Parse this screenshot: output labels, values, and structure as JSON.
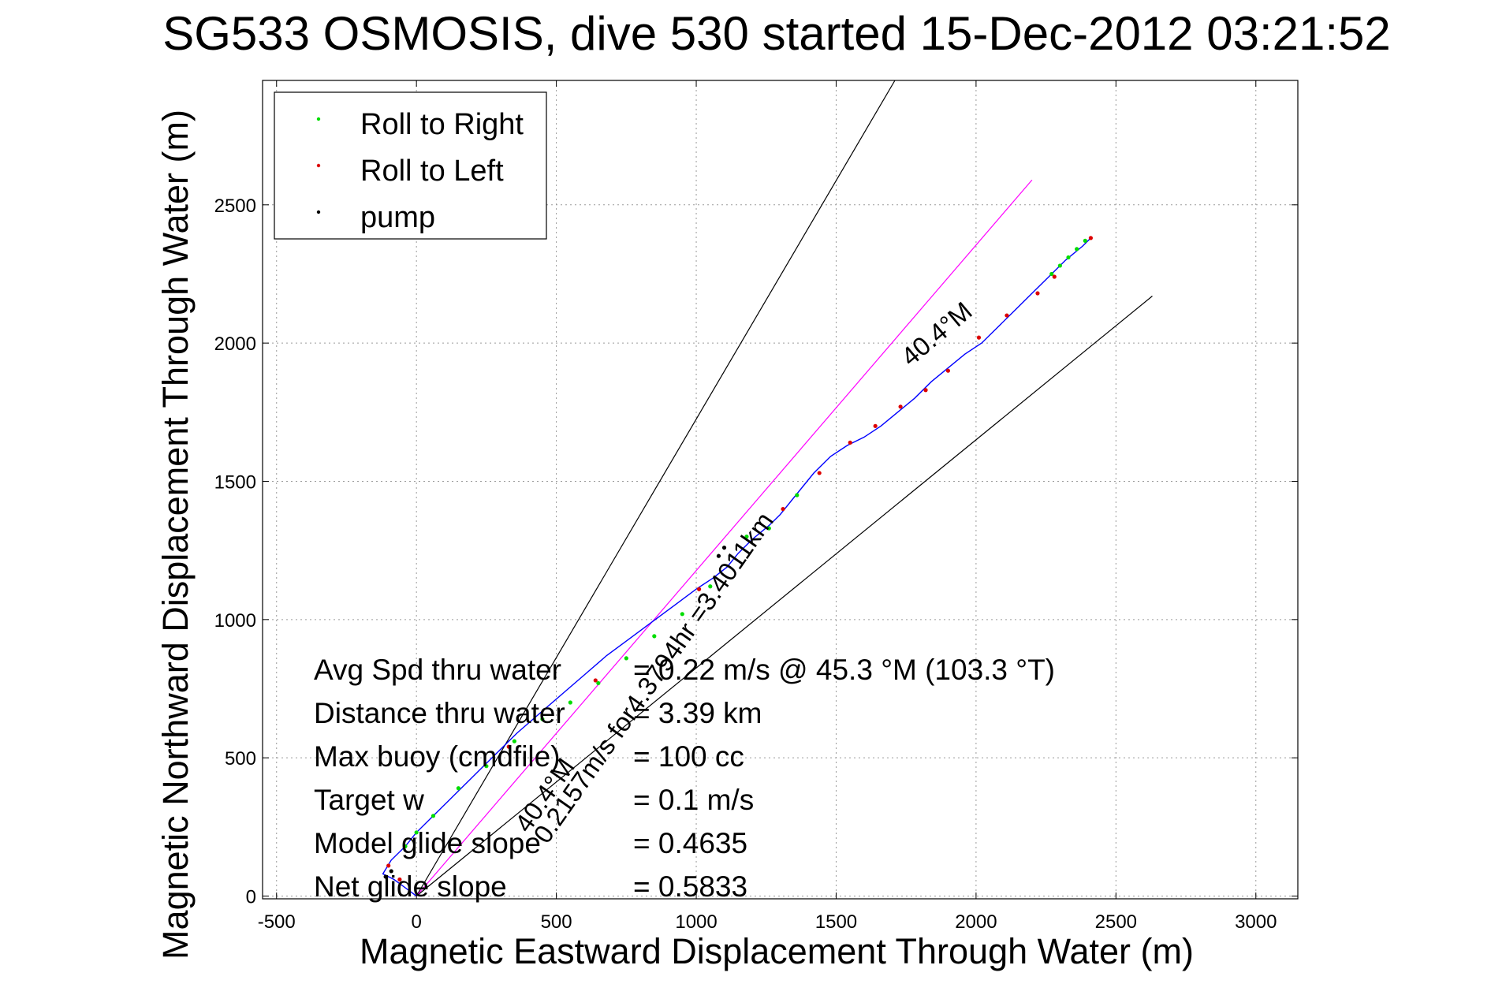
{
  "chart_data": {
    "type": "scatter",
    "title": "SG533 OSMOSIS, dive 530 started 15-Dec-2012 03:21:52",
    "xlabel": "Magnetic Eastward Displacement Through Water (m)",
    "ylabel": "Magnetic Northward Displacement Through Water (m)",
    "xlim": [
      -550,
      3150
    ],
    "ylim": [
      -10,
      2950
    ],
    "xticks": [
      -500,
      0,
      500,
      1000,
      1500,
      2000,
      2500,
      3000
    ],
    "yticks": [
      0,
      500,
      1000,
      1500,
      2000,
      2500
    ],
    "grid": true,
    "legend_placement": "top-left",
    "legend": [
      "Roll to Right",
      "Roll to Left",
      "pump"
    ],
    "colors": {
      "track": "#0000ff",
      "roll_right": "#00dd00",
      "roll_left": "#dd0000",
      "pump": "#000000",
      "heading_line": "#ff00ff",
      "cone_lines": "#000000"
    },
    "track": {
      "x": [
        0,
        -80,
        -120,
        -90,
        -40,
        0,
        60,
        130,
        200,
        280,
        360,
        440,
        520,
        600,
        680,
        760,
        840,
        920,
        1000,
        1060,
        1110,
        1150,
        1200,
        1260,
        1300,
        1340,
        1380,
        1420,
        1480,
        1540,
        1600,
        1660,
        1720,
        1780,
        1840,
        1900,
        1960,
        2020,
        2080,
        2140,
        2200,
        2260,
        2320,
        2380,
        2410
      ],
      "y": [
        0,
        60,
        80,
        130,
        180,
        230,
        290,
        360,
        430,
        510,
        590,
        660,
        730,
        800,
        870,
        930,
        990,
        1050,
        1110,
        1150,
        1190,
        1240,
        1290,
        1340,
        1380,
        1430,
        1480,
        1530,
        1590,
        1630,
        1660,
        1700,
        1750,
        1800,
        1860,
        1910,
        1960,
        2000,
        2060,
        2120,
        2180,
        2240,
        2300,
        2350,
        2380
      ]
    },
    "roll_right": {
      "x": [
        -40,
        0,
        60,
        150,
        250,
        350,
        450,
        550,
        650,
        750,
        850,
        950,
        1050,
        1180,
        1260,
        1360,
        2270,
        2300,
        2330,
        2360,
        2390
      ],
      "y": [
        180,
        230,
        290,
        390,
        470,
        560,
        640,
        700,
        770,
        860,
        940,
        1020,
        1120,
        1300,
        1330,
        1450,
        2250,
        2280,
        2310,
        2340,
        2370
      ]
    },
    "roll_left": {
      "x": [
        -60,
        -100,
        330,
        640,
        1010,
        1310,
        1440,
        1550,
        1640,
        1730,
        1820,
        1900,
        2010,
        2110,
        2220,
        2280,
        2410
      ],
      "y": [
        60,
        110,
        540,
        780,
        1110,
        1400,
        1530,
        1640,
        1700,
        1770,
        1830,
        1900,
        2020,
        2100,
        2180,
        2240,
        2380
      ]
    },
    "pump": {
      "x": [
        -110,
        -90,
        1080,
        1100
      ],
      "y": [
        70,
        90,
        1230,
        1260
      ]
    },
    "heading_line": {
      "x": [
        0,
        2200
      ],
      "y": [
        0,
        2590
      ]
    },
    "cone_lines": [
      {
        "x": [
          0,
          1710
        ],
        "y": [
          0,
          2950
        ]
      },
      {
        "x": [
          0,
          2630
        ],
        "y": [
          0,
          2170
        ]
      }
    ],
    "annotations": {
      "heading_upper": "40.4°M",
      "summary_diag": "0.2157m/s for4.3794hr =3.4011km",
      "heading_lower": "40.4°M"
    },
    "stats": [
      {
        "label": "Avg Spd thru water",
        "value": "=  0.22 m/s @  45.3 °M (103.3 °T)"
      },
      {
        "label": "Distance thru water",
        "value": "=  3.39 km"
      },
      {
        "label": "Max buoy (cmdfile)",
        "value": "= 100 cc"
      },
      {
        "label": "Target w",
        "value": "= 0.1 m/s"
      },
      {
        "label": "Model glide slope",
        "value": "= 0.4635"
      },
      {
        "label": "Net glide slope",
        "value": "= 0.5833"
      }
    ]
  }
}
